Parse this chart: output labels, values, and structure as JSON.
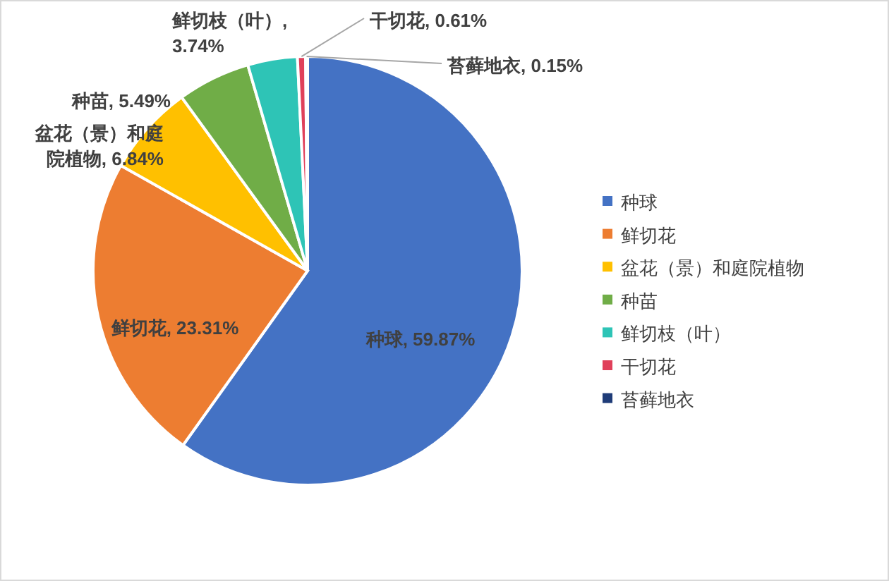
{
  "chart_data": {
    "type": "pie",
    "categories": [
      "种球",
      "鲜切花",
      "盆花（景）和庭院植物",
      "种苗",
      "鲜切枝（叶）",
      "干切花",
      "苔藓地衣"
    ],
    "values": [
      59.87,
      23.31,
      6.84,
      5.49,
      3.74,
      0.61,
      0.15
    ],
    "colors": [
      "#4472c4",
      "#ed7d31",
      "#ffc000",
      "#70ad47",
      "#2ec4b6",
      "#e0405a",
      "#1f3c78"
    ],
    "value_labels": [
      "种球, 59.87%",
      "鲜切花, 23.31%",
      "盆花（景）和庭院植物, 6.84%",
      "种苗, 5.49%",
      "鲜切枝（叶）, 3.74%",
      "干切花, 0.61%",
      "苔藓地衣, 0.15%"
    ],
    "legend": "right"
  }
}
